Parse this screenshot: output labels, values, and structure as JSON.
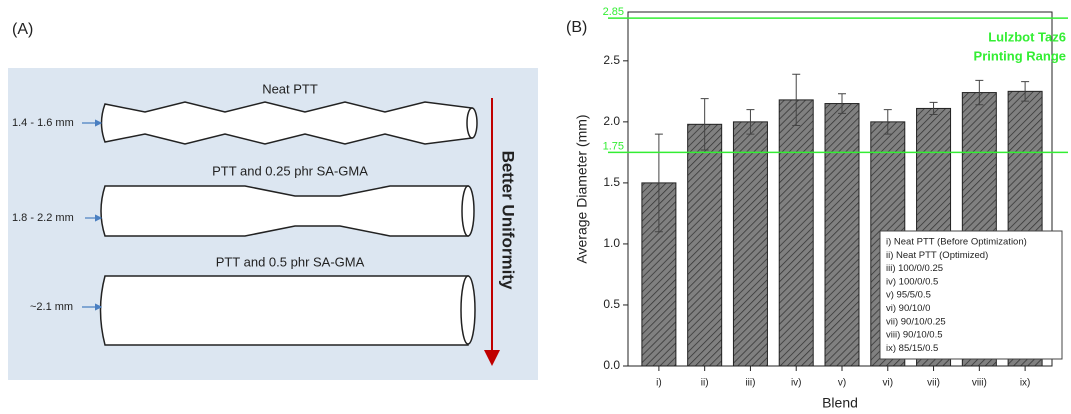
{
  "panel_a": {
    "label": "(A)",
    "items": [
      {
        "title": "Neat PTT",
        "size": "1.4 - 1.6 mm"
      },
      {
        "title": "PTT and 0.25 phr SA-GMA",
        "size": "1.8 - 2.2 mm"
      },
      {
        "title": "PTT and 0.5 phr SA-GMA",
        "size": "~2.1 mm"
      }
    ],
    "arrow_label": "Better Uniformity"
  },
  "chart_data": {
    "type": "bar",
    "panel_label": "(B)",
    "xlabel": "Blend",
    "ylabel": "Average Diameter (mm)",
    "categories": [
      "i)",
      "ii)",
      "iii)",
      "iv)",
      "v)",
      "vi)",
      "vii)",
      "viii)",
      "ix)"
    ],
    "values": [
      1.5,
      1.98,
      2.0,
      2.18,
      2.15,
      2.0,
      2.11,
      2.24,
      2.25
    ],
    "errors": [
      0.4,
      0.21,
      0.1,
      0.21,
      0.08,
      0.1,
      0.05,
      0.1,
      0.08
    ],
    "color": "#808080",
    "ylim": [
      0,
      2.9
    ],
    "yticks": [
      {
        "value": 0,
        "label": "0.0"
      },
      0.5,
      {
        "value": 1,
        "label": "1.0"
      },
      1.5,
      {
        "value": 2,
        "label": "2.0"
      },
      2.5
    ],
    "ref_lines": [
      2.85,
      1.75
    ],
    "ref_color": "#33ee33",
    "annotation": [
      "Lulzbot Taz6",
      "Printing Range"
    ],
    "legend_box": [
      "i) Neat PTT (Before Optimization)",
      "ii) Neat PTT (Optimized)",
      "iii) 100/0/0.25",
      "iv) 100/0/0.5",
      "v) 95/5/0.5",
      "vi) 90/10/0",
      "vii) 90/10/0.25",
      "viii) 90/10/0.5",
      "ix) 85/15/0.5"
    ]
  }
}
